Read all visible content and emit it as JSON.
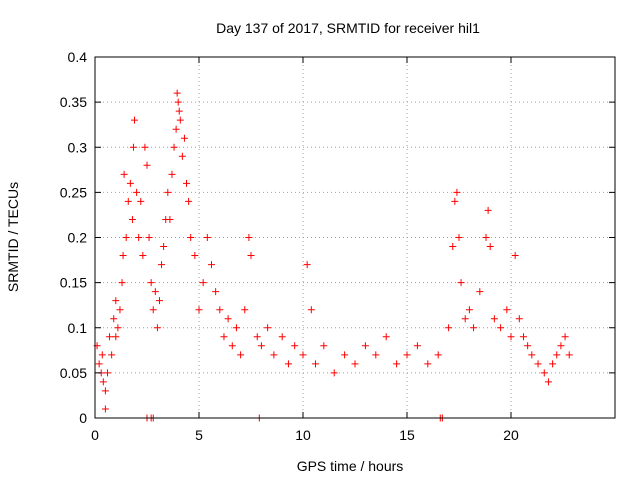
{
  "chart_data": {
    "type": "scatter",
    "title": "Day 137 of 2017, SRMTID for receiver hil1",
    "xlabel": "GPS time / hours",
    "ylabel": "SRMTID / TECUs",
    "xlim": [
      0,
      25
    ],
    "ylim": [
      0,
      0.4
    ],
    "xticks": [
      0,
      5,
      10,
      15,
      20
    ],
    "xtick_labels": [
      "0",
      "5",
      "10",
      "15",
      "20"
    ],
    "yticks": [
      0,
      0.05,
      0.1,
      0.15,
      0.2,
      0.25,
      0.3,
      0.35,
      0.4
    ],
    "ytick_labels": [
      "0",
      "0.05",
      "0.1",
      "0.15",
      "0.2",
      "0.25",
      "0.3",
      "0.35",
      "0.4"
    ],
    "grid": true,
    "marker": "plus",
    "color": "#ff0000",
    "series": [
      {
        "points": [
          [
            0.1,
            0.08
          ],
          [
            0.2,
            0.06
          ],
          [
            0.3,
            0.05
          ],
          [
            0.35,
            0.07
          ],
          [
            0.4,
            0.04
          ],
          [
            0.5,
            0.03
          ],
          [
            0.5,
            0.01
          ],
          [
            0.6,
            0.05
          ],
          [
            0.7,
            0.09
          ],
          [
            0.8,
            0.07
          ],
          [
            0.9,
            0.11
          ],
          [
            1.0,
            0.09
          ],
          [
            1.0,
            0.13
          ],
          [
            1.1,
            0.1
          ],
          [
            1.2,
            0.12
          ],
          [
            1.3,
            0.15
          ],
          [
            1.35,
            0.18
          ],
          [
            1.4,
            0.27
          ],
          [
            1.5,
            0.2
          ],
          [
            1.6,
            0.24
          ],
          [
            1.7,
            0.26
          ],
          [
            1.8,
            0.22
          ],
          [
            1.85,
            0.3
          ],
          [
            1.9,
            0.33
          ],
          [
            2.0,
            0.25
          ],
          [
            2.1,
            0.2
          ],
          [
            2.2,
            0.24
          ],
          [
            2.3,
            0.18
          ],
          [
            2.4,
            0.3
          ],
          [
            2.5,
            0.28
          ],
          [
            2.6,
            0.2
          ],
          [
            2.7,
            0.15
          ],
          [
            2.8,
            0.12
          ],
          [
            2.9,
            0.14
          ],
          [
            3.0,
            0.1
          ],
          [
            3.1,
            0.13
          ],
          [
            3.2,
            0.17
          ],
          [
            3.3,
            0.19
          ],
          [
            3.4,
            0.22
          ],
          [
            3.5,
            0.25
          ],
          [
            3.6,
            0.22
          ],
          [
            3.7,
            0.27
          ],
          [
            3.8,
            0.3
          ],
          [
            3.9,
            0.32
          ],
          [
            3.95,
            0.36
          ],
          [
            4.0,
            0.35
          ],
          [
            4.05,
            0.34
          ],
          [
            4.1,
            0.33
          ],
          [
            4.2,
            0.29
          ],
          [
            4.3,
            0.31
          ],
          [
            4.4,
            0.26
          ],
          [
            4.5,
            0.24
          ],
          [
            4.6,
            0.2
          ],
          [
            4.8,
            0.18
          ],
          [
            5.0,
            0.12
          ],
          [
            5.2,
            0.15
          ],
          [
            5.4,
            0.2
          ],
          [
            5.6,
            0.17
          ],
          [
            5.8,
            0.14
          ],
          [
            6.0,
            0.12
          ],
          [
            6.2,
            0.09
          ],
          [
            6.4,
            0.11
          ],
          [
            6.6,
            0.08
          ],
          [
            6.8,
            0.1
          ],
          [
            7.0,
            0.07
          ],
          [
            7.2,
            0.12
          ],
          [
            7.4,
            0.2
          ],
          [
            7.5,
            0.18
          ],
          [
            7.8,
            0.09
          ],
          [
            8.0,
            0.08
          ],
          [
            8.3,
            0.1
          ],
          [
            8.6,
            0.07
          ],
          [
            9.0,
            0.09
          ],
          [
            9.3,
            0.06
          ],
          [
            9.6,
            0.08
          ],
          [
            10.0,
            0.07
          ],
          [
            10.2,
            0.17
          ],
          [
            10.4,
            0.12
          ],
          [
            10.6,
            0.06
          ],
          [
            11.0,
            0.08
          ],
          [
            11.5,
            0.05
          ],
          [
            12.0,
            0.07
          ],
          [
            12.5,
            0.06
          ],
          [
            13.0,
            0.08
          ],
          [
            13.5,
            0.07
          ],
          [
            14.0,
            0.09
          ],
          [
            14.5,
            0.06
          ],
          [
            15.0,
            0.07
          ],
          [
            15.5,
            0.08
          ],
          [
            16.0,
            0.06
          ],
          [
            16.5,
            0.07
          ],
          [
            17.0,
            0.1
          ],
          [
            17.2,
            0.19
          ],
          [
            17.3,
            0.24
          ],
          [
            17.4,
            0.25
          ],
          [
            17.5,
            0.2
          ],
          [
            17.6,
            0.15
          ],
          [
            17.8,
            0.11
          ],
          [
            18.0,
            0.12
          ],
          [
            18.2,
            0.1
          ],
          [
            18.5,
            0.14
          ],
          [
            18.8,
            0.2
          ],
          [
            18.9,
            0.23
          ],
          [
            19.0,
            0.19
          ],
          [
            19.2,
            0.11
          ],
          [
            19.5,
            0.1
          ],
          [
            19.8,
            0.12
          ],
          [
            20.0,
            0.09
          ],
          [
            20.2,
            0.18
          ],
          [
            20.4,
            0.11
          ],
          [
            20.6,
            0.09
          ],
          [
            20.8,
            0.08
          ],
          [
            21.0,
            0.07
          ],
          [
            21.3,
            0.06
          ],
          [
            21.6,
            0.05
          ],
          [
            21.8,
            0.04
          ],
          [
            22.0,
            0.06
          ],
          [
            22.2,
            0.07
          ],
          [
            22.4,
            0.08
          ],
          [
            22.6,
            0.09
          ],
          [
            22.8,
            0.07
          ],
          [
            2.5,
            0.0
          ],
          [
            2.7,
            0.0
          ],
          [
            2.8,
            0.0
          ],
          [
            7.9,
            0.0
          ],
          [
            16.6,
            0.0
          ],
          [
            16.7,
            0.0
          ]
        ]
      }
    ]
  }
}
